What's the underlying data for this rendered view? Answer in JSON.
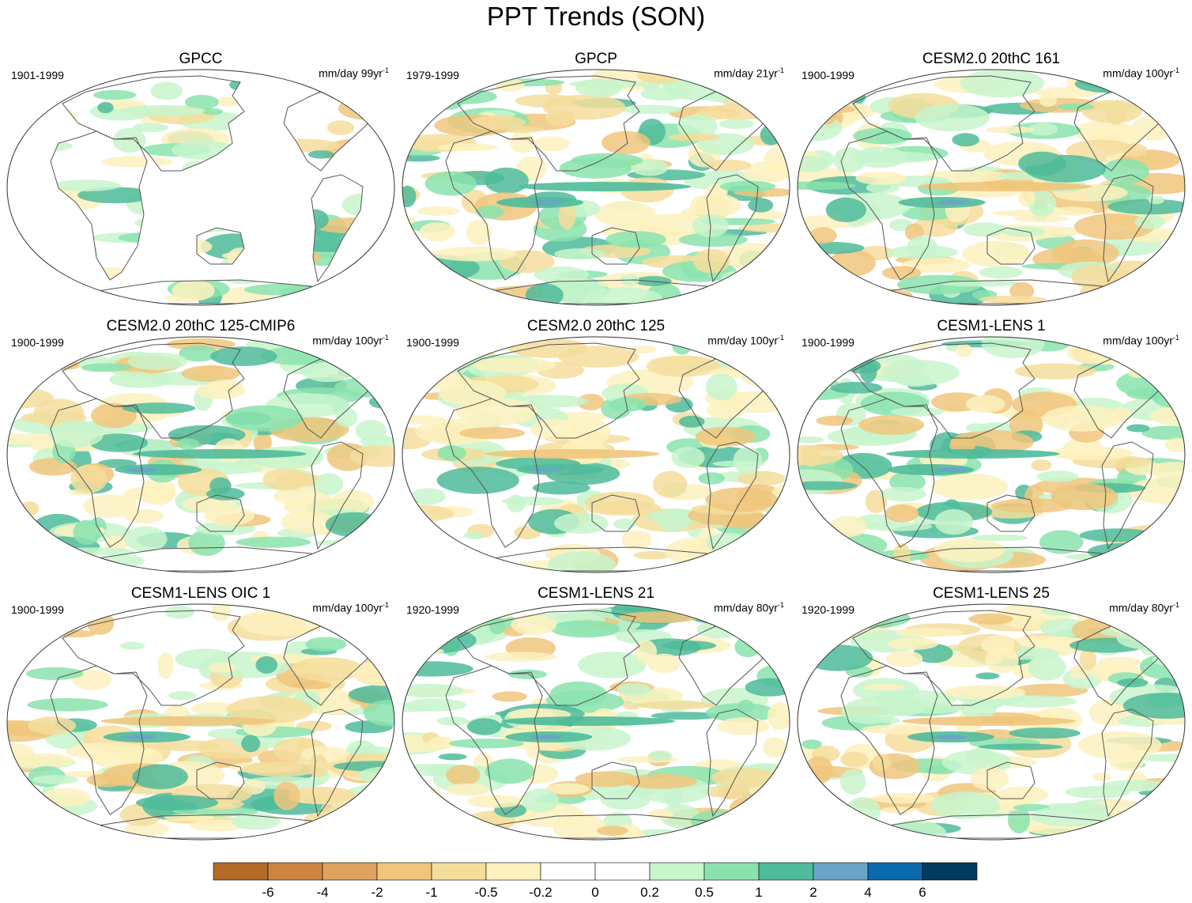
{
  "title": "PPT Trends (SON)",
  "panels": [
    {
      "name": "GPCC",
      "period": "1901-1999",
      "units": "mm/day 99yr",
      "units_exp": "-1",
      "land_only": true
    },
    {
      "name": "GPCP",
      "period": "1979-1999",
      "units": "mm/day 21yr",
      "units_exp": "-1",
      "land_only": false
    },
    {
      "name": "CESM2.0 20thC 161",
      "period": "1900-1999",
      "units": "mm/day 100yr",
      "units_exp": "-1",
      "land_only": false
    },
    {
      "name": "CESM2.0 20thC 125-CMIP6",
      "period": "1900-1999",
      "units": "mm/day 100yr",
      "units_exp": "-1",
      "land_only": false
    },
    {
      "name": "CESM2.0 20thC 125",
      "period": "1900-1999",
      "units": "mm/day 100yr",
      "units_exp": "-1",
      "land_only": false
    },
    {
      "name": "CESM1-LENS 1",
      "period": "1900-1999",
      "units": "mm/day 100yr",
      "units_exp": "-1",
      "land_only": false
    },
    {
      "name": "CESM1-LENS OIC 1",
      "period": "1900-1999",
      "units": "mm/day 100yr",
      "units_exp": "-1",
      "land_only": false
    },
    {
      "name": "CESM1-LENS 21",
      "period": "1920-1999",
      "units": "mm/day 80yr",
      "units_exp": "-1",
      "land_only": false
    },
    {
      "name": "CESM1-LENS 25",
      "period": "1920-1999",
      "units": "mm/day 80yr",
      "units_exp": "-1",
      "land_only": false
    }
  ],
  "colorbar": {
    "labels": [
      "-6",
      "-4",
      "-2",
      "-1",
      "-0.5",
      "-0.2",
      "0",
      "0.2",
      "0.5",
      "1",
      "2",
      "4",
      "6"
    ],
    "colors": [
      "#b46a28",
      "#cc8540",
      "#dfa35f",
      "#f0c57c",
      "#f4dd9b",
      "#fdf1be",
      "#ffffff",
      "#ffffff",
      "#c8f5cc",
      "#8ae3ae",
      "#4fbb9a",
      "#6aa5c8",
      "#0a6aab",
      "#003a5e"
    ]
  },
  "colors": {
    "coast": "#555555",
    "border": "#333333",
    "wet1": "#c8f5cc",
    "wet2": "#8ae3ae",
    "wet3": "#4fbb9a",
    "wet4": "#6aa5c8",
    "dry1": "#fdf1be",
    "dry2": "#f4dd9b",
    "dry3": "#f0c57c",
    "dry4": "#dfa35f"
  }
}
